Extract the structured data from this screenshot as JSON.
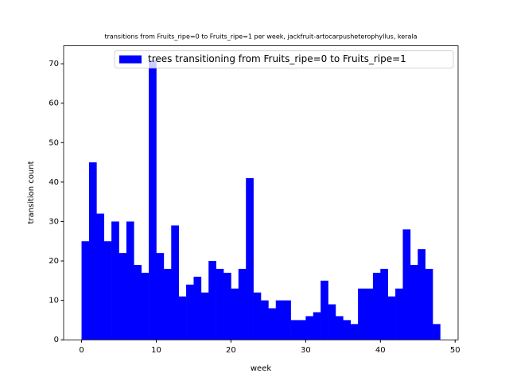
{
  "chart_data": {
    "type": "histogram",
    "title": "transitions from Fruits_ripe=0 to Fruits_ripe=1 per week, jackfruit-artocarpusheterophyllus, kerala",
    "x_label": "week",
    "y_label": "transition count",
    "bins": [
      0,
      1,
      2,
      3,
      4,
      5,
      6,
      7,
      8,
      9,
      10,
      11,
      12,
      13,
      14,
      15,
      16,
      17,
      18,
      19,
      20,
      21,
      22,
      23,
      24,
      25,
      26,
      27,
      28,
      29,
      30,
      31,
      32,
      33,
      34,
      35,
      36,
      37,
      38,
      39,
      40,
      41,
      42,
      43,
      44,
      45,
      46,
      47,
      48
    ],
    "series": [
      {
        "name": "trees transitioning from Fruits_ripe=0 to Fruits_ripe=1",
        "color": "#0000ff",
        "values": [
          25,
          45,
          32,
          25,
          30,
          22,
          30,
          19,
          17,
          71,
          22,
          18,
          29,
          11,
          14,
          16,
          12,
          20,
          18,
          17,
          13,
          18,
          41,
          12,
          10,
          8,
          10,
          10,
          5,
          5,
          6,
          7,
          15,
          9,
          6,
          5,
          4,
          13,
          13,
          17,
          18,
          11,
          13,
          28,
          19,
          23,
          18,
          4
        ]
      }
    ],
    "xlim": [
      -2.4,
      50.4
    ],
    "xticks": [
      0,
      10,
      20,
      30,
      40,
      50
    ],
    "ylim": [
      0,
      74.55
    ],
    "yticks": [
      0,
      10,
      20,
      30,
      40,
      50,
      60,
      70
    ],
    "legend": "upper right"
  }
}
